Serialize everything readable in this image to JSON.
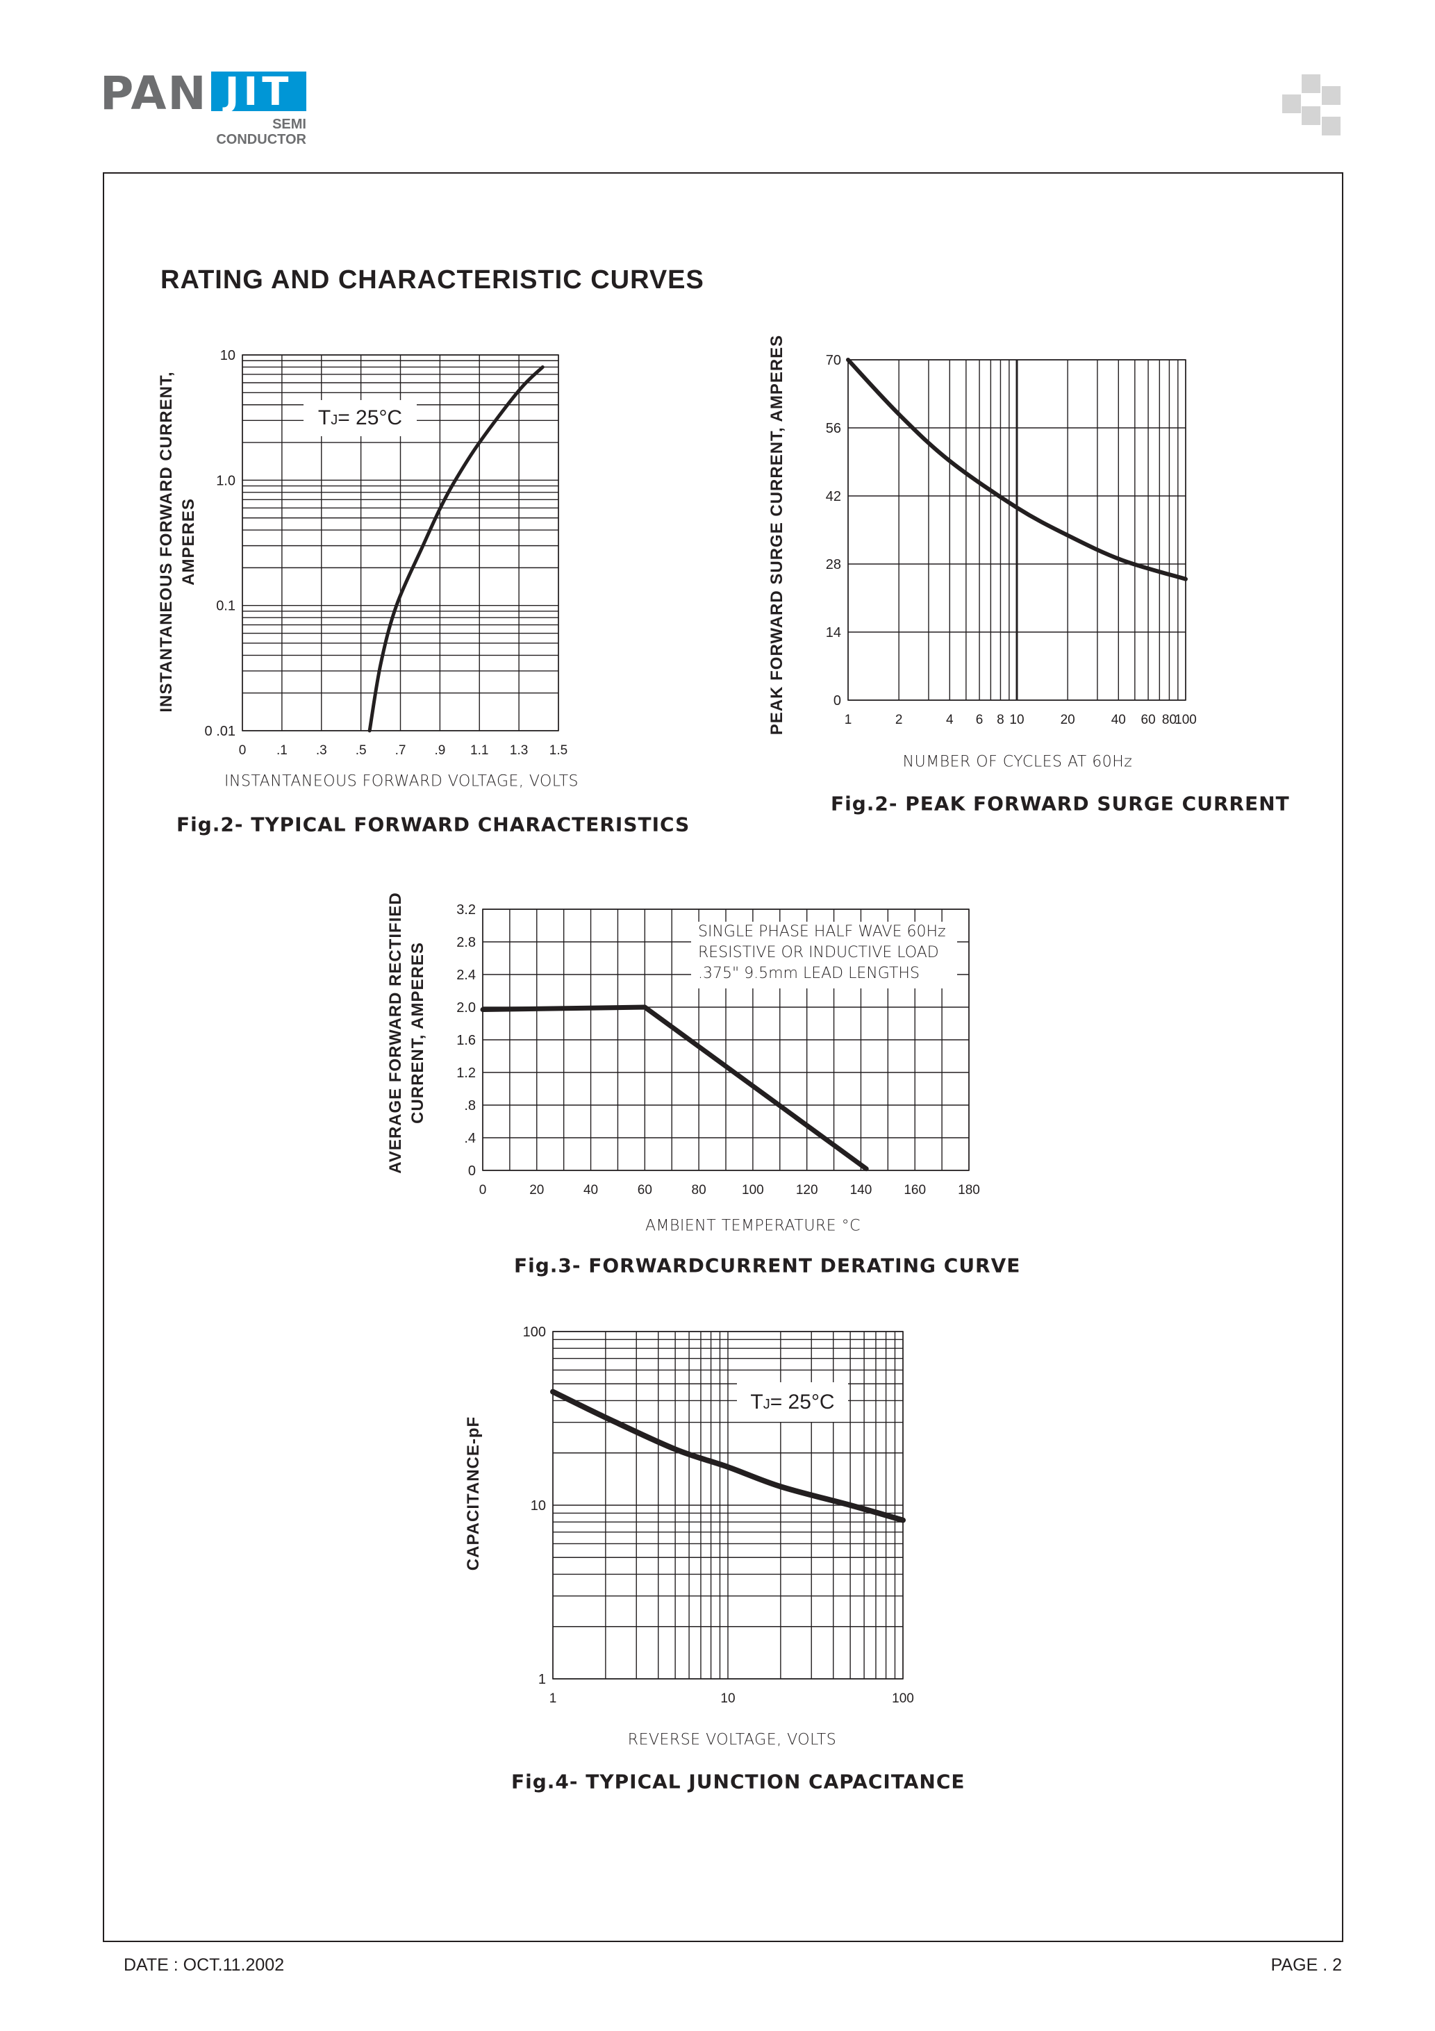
{
  "header": {
    "logo": {
      "brand_left": "PAN",
      "brand_right": "JIT",
      "sub_line1": "SEMI",
      "sub_line2": "CONDUCTOR",
      "gray": "#6d6e70",
      "blue": "#0096d6"
    },
    "section_title": "RATING AND CHARACTERISTIC CURVES"
  },
  "footer": {
    "date": "DATE : OCT.11.2002",
    "page": "PAGE . 2"
  },
  "chart_data": [
    {
      "type": "line",
      "title": "Fig.2- TYPICAL FORWARD CHARACTERISTICS",
      "xlabel": "INSTANTANEOUS FORWARD VOLTAGE, VOLTS",
      "ylabel_lines": [
        "INSTANTANEOUS FORWARD CURRENT,",
        "AMPERES"
      ],
      "x_scale": "linear",
      "y_scale": "log",
      "xlim": [
        0,
        1.5
      ],
      "ylim": [
        0.01,
        10
      ],
      "grid": true,
      "x_ticks": [
        {
          "value": 0,
          "label": "0"
        },
        {
          "value": 0.1,
          "label": ".1"
        },
        {
          "value": 0.3,
          "label": ".3"
        },
        {
          "value": 0.5,
          "label": ".5"
        },
        {
          "value": 0.7,
          "label": ".7"
        },
        {
          "value": 0.9,
          "label": ".9"
        },
        {
          "value": 1.1,
          "label": "1.1"
        },
        {
          "value": 1.3,
          "label": "1.3"
        },
        {
          "value": 1.5,
          "label": "1.5"
        }
      ],
      "y_ticks": [
        {
          "value": 10,
          "label": "10"
        },
        {
          "value": 1,
          "label": "1.0"
        },
        {
          "value": 0.1,
          "label": "0.1"
        },
        {
          "value": 0.01,
          "label": "0 .01"
        }
      ],
      "annotation": {
        "symbol": "T",
        "subscript": "J",
        "text": "= 25",
        "unit": "°C"
      },
      "series": [
        {
          "x": [
            0.544,
            0.6,
            0.68,
            0.814,
            0.902,
            0.978,
            1.1,
            1.3,
            1.42
          ],
          "y": [
            0.01,
            0.034,
            0.1,
            0.3,
            0.6,
            1.0,
            2.0,
            5.2,
            8.0
          ]
        }
      ]
    },
    {
      "type": "line",
      "title": "Fig.2- PEAK FORWARD SURGE CURRENT",
      "xlabel": "NUMBER OF CYCLES AT 60Hz",
      "ylabel_lines": [
        "PEAK FORWARD SURGE CURRENT, AMPERES"
      ],
      "x_scale": "log",
      "y_scale": "linear",
      "xlim": [
        1,
        100
      ],
      "ylim": [
        0,
        70
      ],
      "grid": true,
      "x_ticks": [
        {
          "value": 1,
          "label": "1"
        },
        {
          "value": 2,
          "label": "2"
        },
        {
          "value": 4,
          "label": "4"
        },
        {
          "value": 6,
          "label": "6"
        },
        {
          "value": 8,
          "label": "8"
        },
        {
          "value": 10,
          "label": "10"
        },
        {
          "value": 20,
          "label": "20"
        },
        {
          "value": 40,
          "label": "40"
        },
        {
          "value": 60,
          "label": "60"
        },
        {
          "value": 80,
          "label": "80"
        },
        {
          "value": 100,
          "label": "100"
        }
      ],
      "y_ticks": [
        {
          "value": 70,
          "label": "70"
        },
        {
          "value": 56,
          "label": "56"
        },
        {
          "value": 42,
          "label": "42"
        },
        {
          "value": 28,
          "label": "28"
        },
        {
          "value": 14,
          "label": "14"
        },
        {
          "value": 0,
          "label": "0"
        }
      ],
      "series": [
        {
          "x": [
            1,
            2,
            4,
            10,
            20,
            42,
            100
          ],
          "y": [
            70,
            58.8,
            49.2,
            39.6,
            33.9,
            28.8,
            24.9
          ]
        }
      ]
    },
    {
      "type": "line",
      "title": "Fig.3- FORWARDCURRENT DERATING CURVE",
      "xlabel": "AMBIENT TEMPERATURE °C",
      "ylabel_lines": [
        "AVERAGE FORWARD RECTIFIED",
        "CURRENT, AMPERES"
      ],
      "x_scale": "linear",
      "y_scale": "linear",
      "xlim": [
        0,
        180
      ],
      "ylim": [
        0,
        3.2
      ],
      "grid": true,
      "x_ticks": [
        {
          "value": 0,
          "label": "0"
        },
        {
          "value": 20,
          "label": "20"
        },
        {
          "value": 40,
          "label": "40"
        },
        {
          "value": 60,
          "label": "60"
        },
        {
          "value": 80,
          "label": "80"
        },
        {
          "value": 100,
          "label": "100"
        },
        {
          "value": 120,
          "label": "120"
        },
        {
          "value": 140,
          "label": "140"
        },
        {
          "value": 160,
          "label": "160"
        },
        {
          "value": 180,
          "label": "180"
        }
      ],
      "y_ticks": [
        {
          "value": 3.2,
          "label": "3.2"
        },
        {
          "value": 2.8,
          "label": "2.8"
        },
        {
          "value": 2.4,
          "label": "2.4"
        },
        {
          "value": 2.0,
          "label": "2.0"
        },
        {
          "value": 1.6,
          "label": "1.6"
        },
        {
          "value": 1.2,
          "label": "1.2"
        },
        {
          "value": 0.8,
          "label": ".8"
        },
        {
          "value": 0.4,
          "label": ".4"
        },
        {
          "value": 0,
          "label": "0"
        }
      ],
      "annotation_lines": [
        "SINGLE PHASE HALF WAVE 60Hz",
        "RESISTIVE OR INDUCTIVE LOAD",
        ".375\"  9.5mm LEAD LENGTHS"
      ],
      "series": [
        {
          "x": [
            0,
            60,
            142
          ],
          "y": [
            1.97,
            2.0,
            0.02
          ]
        }
      ]
    },
    {
      "type": "line",
      "title": "Fig.4- TYPICAL JUNCTION CAPACITANCE",
      "xlabel": "REVERSE VOLTAGE, VOLTS",
      "ylabel_lines": [
        "CAPACITANCE-pF"
      ],
      "x_scale": "log",
      "y_scale": "log",
      "xlim": [
        1,
        100
      ],
      "ylim": [
        1,
        100
      ],
      "grid": true,
      "x_ticks": [
        {
          "value": 1,
          "label": "1"
        },
        {
          "value": 10,
          "label": "10"
        },
        {
          "value": 100,
          "label": "100"
        }
      ],
      "y_ticks": [
        {
          "value": 100,
          "label": "100"
        },
        {
          "value": 10,
          "label": "10"
        },
        {
          "value": 1,
          "label": "1"
        }
      ],
      "annotation": {
        "symbol": "T",
        "subscript": "J",
        "text": "= 25",
        "unit": "°C"
      },
      "series": [
        {
          "x": [
            1,
            2,
            5,
            10,
            20,
            50,
            100
          ],
          "y": [
            45,
            32,
            21,
            16.6,
            12.8,
            10,
            8.2
          ]
        }
      ]
    }
  ]
}
